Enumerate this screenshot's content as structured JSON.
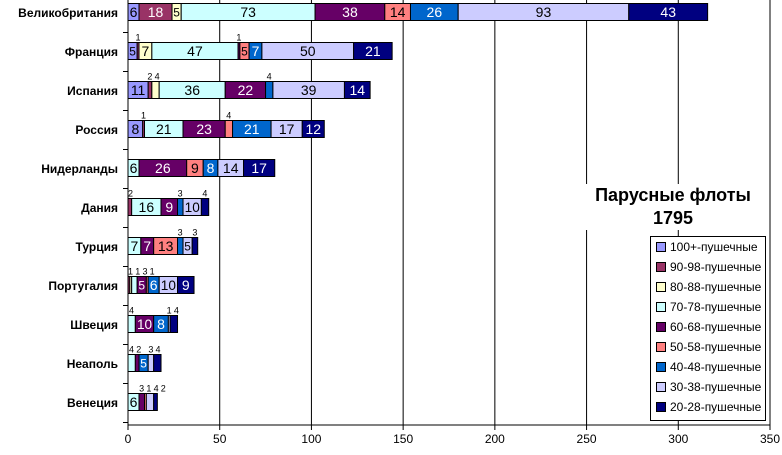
{
  "chart_data": {
    "type": "bar",
    "orientation": "horizontal",
    "stacked": true,
    "title": "Парусные флоты 1795",
    "title_lines": [
      "Парусные флоты",
      "1795"
    ],
    "xlabel": "",
    "ylabel": "",
    "xlim": [
      0,
      350
    ],
    "xticks": [
      0,
      50,
      100,
      150,
      200,
      250,
      300,
      350
    ],
    "grid": "vertical",
    "legend_position": "bottom-right",
    "categories": [
      "Великобритания",
      "Франция",
      "Испания",
      "Россия",
      "Нидерланды",
      "Дания",
      "Турция",
      "Португалия",
      "Швеция",
      "Неаполь",
      "Венеция"
    ],
    "series": [
      {
        "name": "100+-пушечные",
        "color": "#9999ff",
        "text": "#000",
        "values": [
          6,
          5,
          11,
          8,
          0,
          0,
          0,
          0,
          0,
          0,
          0
        ]
      },
      {
        "name": "90-98-пушечные",
        "color": "#993366",
        "text": "#fff",
        "values": [
          18,
          1,
          2,
          1,
          0,
          2,
          0,
          1,
          0,
          0,
          0
        ]
      },
      {
        "name": "80-88-пушечные",
        "color": "#ffffcc",
        "text": "#000",
        "values": [
          5,
          7,
          4,
          0,
          0,
          0,
          0,
          1,
          0,
          0,
          0
        ]
      },
      {
        "name": "70-78-пушечные",
        "color": "#ccffff",
        "text": "#000",
        "values": [
          73,
          47,
          36,
          21,
          6,
          16,
          7,
          3,
          4,
          4,
          6
        ]
      },
      {
        "name": "60-68-пушечные",
        "color": "#660066",
        "text": "#fff",
        "values": [
          38,
          1,
          22,
          23,
          26,
          9,
          7,
          5,
          10,
          2,
          3
        ]
      },
      {
        "name": "50-58-пушечные",
        "color": "#ff8080",
        "text": "#000",
        "values": [
          14,
          5,
          0,
          4,
          9,
          0,
          13,
          1,
          0,
          0,
          1
        ]
      },
      {
        "name": "40-48-пушечные",
        "color": "#0066cc",
        "text": "#fff",
        "values": [
          26,
          7,
          4,
          21,
          8,
          3,
          3,
          6,
          8,
          5,
          0
        ]
      },
      {
        "name": "30-38-пушечные",
        "color": "#ccccff",
        "text": "#000",
        "values": [
          93,
          50,
          39,
          17,
          14,
          10,
          5,
          10,
          1,
          3,
          4
        ]
      },
      {
        "name": "20-28-пушечные",
        "color": "#000080",
        "text": "#fff",
        "values": [
          43,
          21,
          14,
          12,
          17,
          4,
          3,
          9,
          4,
          4,
          2
        ]
      }
    ]
  }
}
